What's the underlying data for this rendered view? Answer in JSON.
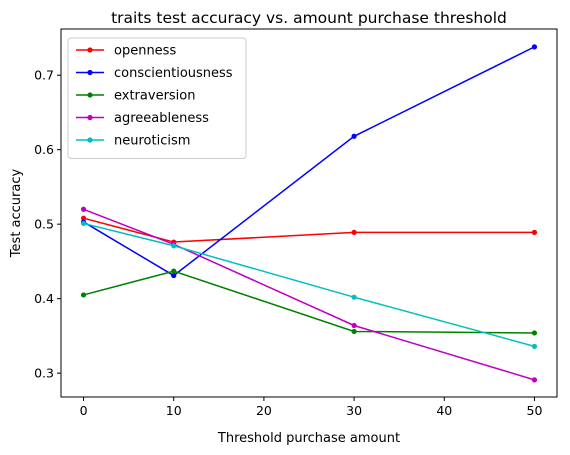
{
  "chart_data": {
    "type": "line",
    "title": "traits test accuracy vs. amount purchase threshold",
    "xlabel": "Threshold purchase amount",
    "ylabel": "Test accuracy",
    "x": [
      0,
      10,
      30,
      50
    ],
    "xlim": [
      -2.5,
      52.5
    ],
    "ylim": [
      0.268,
      0.762
    ],
    "xticks": [
      0,
      10,
      20,
      30,
      40,
      50
    ],
    "yticks": [
      0.3,
      0.4,
      0.5,
      0.6,
      0.7
    ],
    "legend_position": "top-left",
    "grid": false,
    "series": [
      {
        "name": "openness",
        "color": "#ff0000",
        "values": [
          0.508,
          0.476,
          0.489,
          0.489
        ]
      },
      {
        "name": "conscientiousness",
        "color": "#0000ff",
        "values": [
          0.503,
          0.431,
          0.618,
          0.738
        ]
      },
      {
        "name": "extraversion",
        "color": "#008000",
        "values": [
          0.405,
          0.437,
          0.356,
          0.354
        ]
      },
      {
        "name": "agreeableness",
        "color": "#bf00bf",
        "values": [
          0.52,
          0.473,
          0.364,
          0.291
        ]
      },
      {
        "name": "neuroticism",
        "color": "#00bfbf",
        "values": [
          0.501,
          0.471,
          0.402,
          0.336
        ]
      }
    ]
  }
}
